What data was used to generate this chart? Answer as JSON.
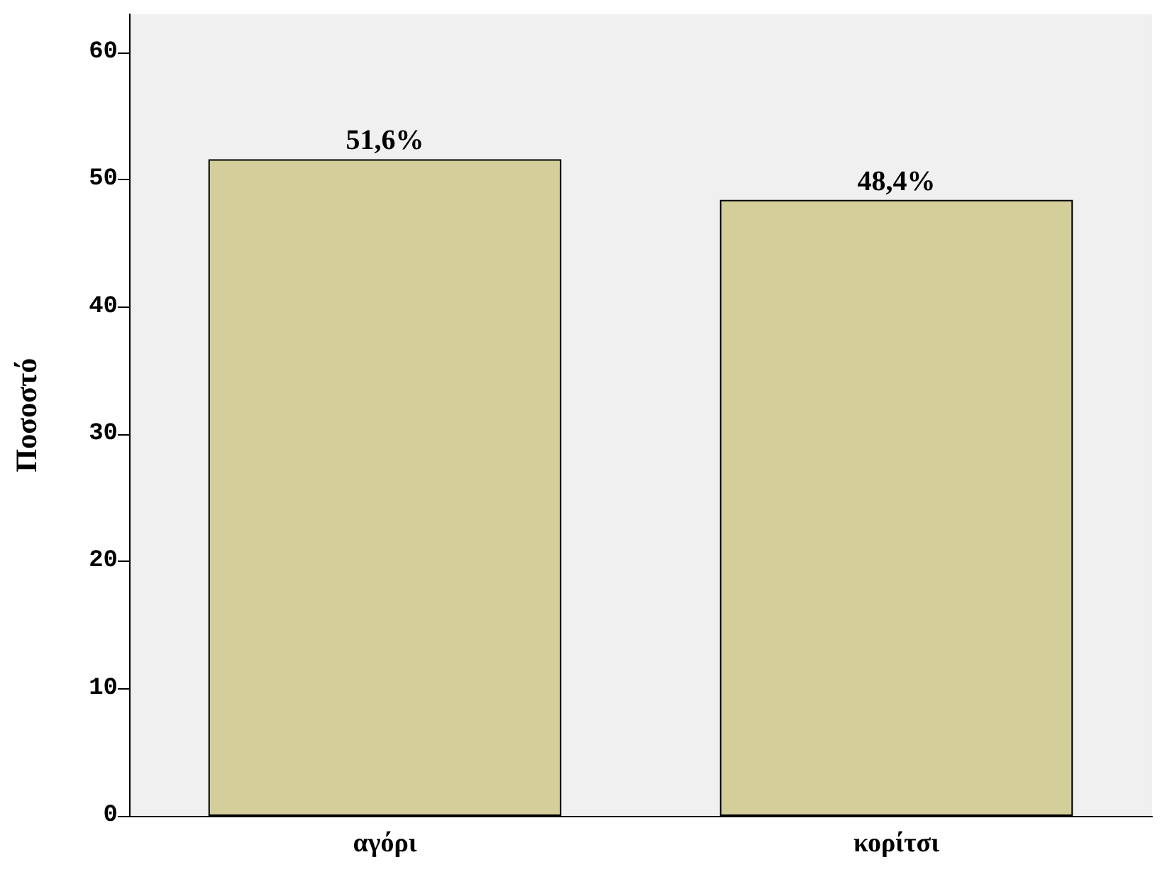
{
  "chart_data": {
    "type": "bar",
    "ylabel": "Ποσοστό",
    "categories": [
      "αγόρι",
      "κορίτσι"
    ],
    "values": [
      51.6,
      48.4
    ],
    "value_labels": [
      "51,6%",
      "48,4%"
    ],
    "color": "#d3ce9a",
    "ylim": [
      0,
      63
    ],
    "yticks": [
      0,
      10,
      20,
      30,
      40,
      50,
      60
    ],
    "grid": false
  }
}
